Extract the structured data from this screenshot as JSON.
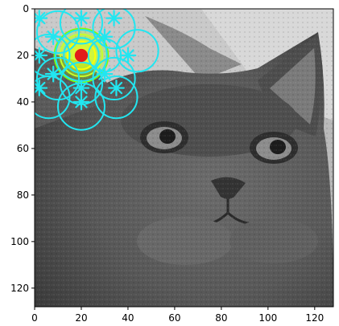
{
  "chart_data": {
    "type": "image",
    "title": "",
    "xlabel": "",
    "ylabel": "",
    "image_size": [
      128,
      128
    ],
    "xlim": [
      0,
      128
    ],
    "ylim": [
      128,
      0
    ],
    "x_ticks": [
      {
        "value": 0,
        "label": "0"
      },
      {
        "value": 20,
        "label": "20"
      },
      {
        "value": 40,
        "label": "40"
      },
      {
        "value": 60,
        "label": "60"
      },
      {
        "value": 80,
        "label": "80"
      },
      {
        "value": 100,
        "label": "100"
      },
      {
        "value": 120,
        "label": "120"
      }
    ],
    "y_ticks": [
      {
        "value": 0,
        "label": "0"
      },
      {
        "value": 20,
        "label": "20"
      },
      {
        "value": 40,
        "label": "40"
      },
      {
        "value": 60,
        "label": "60"
      },
      {
        "value": 80,
        "label": "80"
      },
      {
        "value": 100,
        "label": "100"
      },
      {
        "value": 120,
        "label": "120"
      }
    ],
    "background_image": "grayscale-cat-photo",
    "grid": false,
    "overlays": {
      "circle_color": "#22e6f0",
      "star_color": "#22e6f0",
      "highlight_colors": [
        "#c8ff2a",
        "#ffff00",
        "#7fff00"
      ],
      "center_color": "#e21b1b",
      "center_point": {
        "x": 20,
        "y": 20
      },
      "circles": [
        {
          "x": 20,
          "y": 20,
          "r": 7.5
        },
        {
          "x": 20,
          "y": 20,
          "r": 11
        },
        {
          "x": 10,
          "y": 10,
          "r": 9
        },
        {
          "x": 20,
          "y": 6,
          "r": 9
        },
        {
          "x": 34,
          "y": 8,
          "r": 9
        },
        {
          "x": 44,
          "y": 18,
          "r": 9
        },
        {
          "x": 6,
          "y": 20,
          "r": 9
        },
        {
          "x": 10,
          "y": 30,
          "r": 9
        },
        {
          "x": 34,
          "y": 30,
          "r": 9
        },
        {
          "x": 20,
          "y": 32,
          "r": 9
        },
        {
          "x": 6,
          "y": 38,
          "r": 9
        },
        {
          "x": 20,
          "y": 42,
          "r": 10
        },
        {
          "x": 35,
          "y": 38,
          "r": 9
        },
        {
          "x": 30,
          "y": 20,
          "r": 7
        }
      ],
      "stars": [
        {
          "x": 2,
          "y": 4
        },
        {
          "x": 20,
          "y": 4
        },
        {
          "x": 34,
          "y": 4
        },
        {
          "x": 8,
          "y": 12
        },
        {
          "x": 30,
          "y": 12
        },
        {
          "x": 2,
          "y": 20
        },
        {
          "x": 40,
          "y": 20
        },
        {
          "x": 8,
          "y": 28
        },
        {
          "x": 30,
          "y": 28
        },
        {
          "x": 2,
          "y": 34
        },
        {
          "x": 20,
          "y": 34
        },
        {
          "x": 35,
          "y": 34
        },
        {
          "x": 20,
          "y": 40
        }
      ]
    }
  }
}
